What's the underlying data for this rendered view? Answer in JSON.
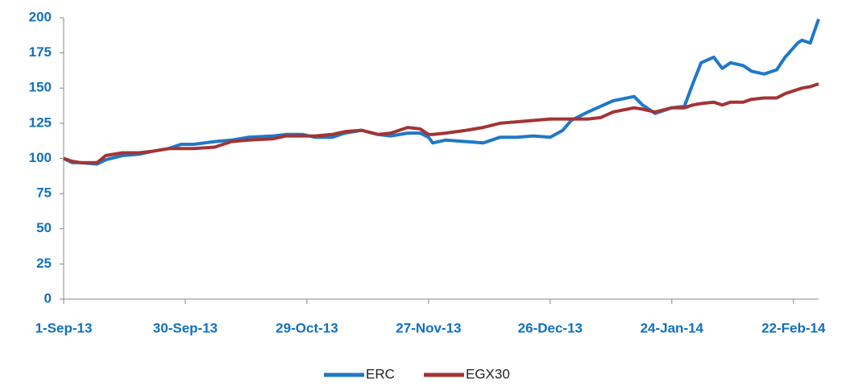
{
  "chart_data": {
    "type": "line",
    "x": [
      "2013-09-01",
      "2013-09-03",
      "2013-09-05",
      "2013-09-09",
      "2013-09-11",
      "2013-09-15",
      "2013-09-19",
      "2013-09-22",
      "2013-09-26",
      "2013-09-29",
      "2013-10-02",
      "2013-10-07",
      "2013-10-11",
      "2013-10-15",
      "2013-10-21",
      "2013-10-24",
      "2013-10-28",
      "2013-10-31",
      "2013-11-04",
      "2013-11-07",
      "2013-11-11",
      "2013-11-15",
      "2013-11-18",
      "2013-11-22",
      "2013-11-25",
      "2013-11-27",
      "2013-11-28",
      "2013-12-01",
      "2013-12-06",
      "2013-12-10",
      "2013-12-14",
      "2013-12-18",
      "2013-12-22",
      "2013-12-26",
      "2013-12-29",
      "2013-12-31",
      "2014-01-04",
      "2014-01-07",
      "2014-01-10",
      "2014-01-15",
      "2014-01-17",
      "2014-01-20",
      "2014-01-24",
      "2014-01-27",
      "2014-01-29",
      "2014-01-31",
      "2014-02-03",
      "2014-02-05",
      "2014-02-07",
      "2014-02-10",
      "2014-02-12",
      "2014-02-15",
      "2014-02-18",
      "2014-02-20",
      "2014-02-23",
      "2014-02-24",
      "2014-02-26",
      "2014-02-28"
    ],
    "series": [
      {
        "name": "ERC",
        "color": "#1f78c8",
        "values": [
          100,
          97,
          97,
          96,
          99,
          102,
          103,
          105,
          107,
          110,
          110,
          112,
          113,
          115,
          116,
          117,
          117,
          115,
          115,
          118,
          120,
          117,
          116,
          118,
          118,
          115,
          111,
          113,
          112,
          111,
          115,
          115,
          116,
          115,
          120,
          127,
          133,
          137,
          141,
          144,
          138,
          132,
          136,
          137,
          153,
          168,
          172,
          164,
          168,
          166,
          162,
          160,
          163,
          172,
          182,
          184,
          182,
          199
        ]
      },
      {
        "name": "EGX30",
        "color": "#a33434",
        "values": [
          100,
          98,
          97,
          97,
          102,
          104,
          104,
          105,
          107,
          107,
          107,
          108,
          112,
          113,
          114,
          116,
          116,
          116,
          117,
          119,
          120,
          117,
          118,
          122,
          121,
          117,
          117,
          118,
          120,
          122,
          125,
          126,
          127,
          128,
          128,
          128,
          128,
          129,
          133,
          136,
          135,
          133,
          136,
          136,
          138,
          139,
          140,
          138,
          140,
          140,
          142,
          143,
          143,
          146,
          149,
          150,
          151,
          153
        ]
      }
    ],
    "xlim": [
      "2013-09-01",
      "2014-02-28"
    ],
    "xticks": [
      {
        "value": "2013-09-01",
        "label": "1-Sep-13"
      },
      {
        "value": "2013-09-30",
        "label": "30-Sep-13"
      },
      {
        "value": "2013-10-29",
        "label": "29-Oct-13"
      },
      {
        "value": "2013-11-27",
        "label": "27-Nov-13"
      },
      {
        "value": "2013-12-26",
        "label": "26-Dec-13"
      },
      {
        "value": "2014-01-24",
        "label": "24-Jan-14"
      },
      {
        "value": "2014-02-22",
        "label": "22-Feb-14"
      }
    ],
    "ylim": [
      0,
      200
    ],
    "yticks": [
      0,
      25,
      50,
      75,
      100,
      125,
      150,
      175,
      200
    ],
    "legend": "bottom"
  }
}
